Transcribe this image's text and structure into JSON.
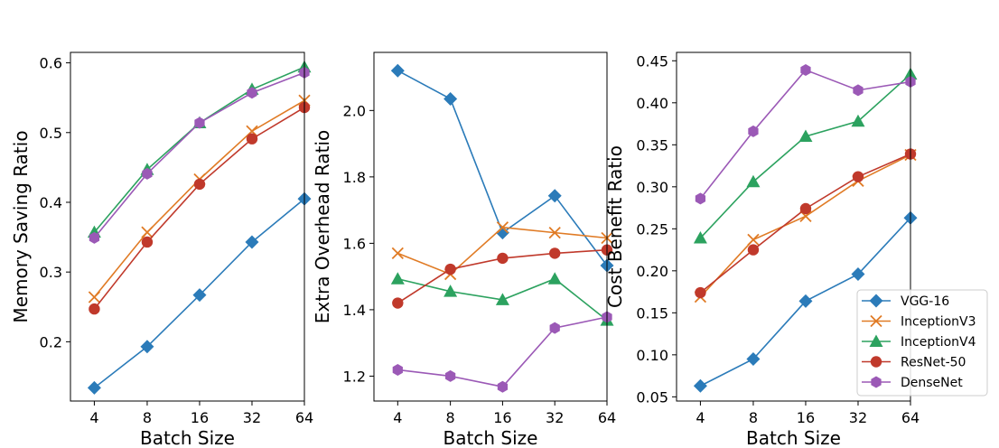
{
  "chart_data": [
    {
      "type": "line",
      "categories": [
        "4",
        "8",
        "16",
        "32",
        "64"
      ],
      "xlabel": "Batch Size",
      "ylabel": "Memory Saving Ratio",
      "ylim": [
        0.115,
        0.615
      ],
      "yticks": [
        0.2,
        0.3,
        0.4,
        0.5,
        0.6
      ],
      "ytick_labels": [
        "0.2",
        "0.3",
        "0.4",
        "0.5",
        "0.6"
      ],
      "series": [
        {
          "name": "VGG-16",
          "values": [
            0.134,
            0.193,
            0.267,
            0.343,
            0.405
          ]
        },
        {
          "name": "InceptionV3",
          "values": [
            0.264,
            0.357,
            0.433,
            0.502,
            0.546
          ]
        },
        {
          "name": "InceptionV4",
          "values": [
            0.357,
            0.447,
            0.514,
            0.562,
            0.594
          ]
        },
        {
          "name": "ResNet-50",
          "values": [
            0.247,
            0.343,
            0.426,
            0.491,
            0.536
          ]
        },
        {
          "name": "DenseNet",
          "values": [
            0.349,
            0.441,
            0.514,
            0.557,
            0.586
          ]
        }
      ]
    },
    {
      "type": "line",
      "categories": [
        "4",
        "8",
        "16",
        "32",
        "64"
      ],
      "xlabel": "Batch Size",
      "ylabel": "Extra Overhead Ratio",
      "ylim": [
        1.125,
        2.175
      ],
      "yticks": [
        1.2,
        1.4,
        1.6,
        1.8,
        2.0
      ],
      "ytick_labels": [
        "1.2",
        "1.4",
        "1.6",
        "1.8",
        "2.0"
      ],
      "series": [
        {
          "name": "VGG-16",
          "values": [
            2.12,
            2.035,
            1.632,
            1.743,
            1.533
          ]
        },
        {
          "name": "InceptionV3",
          "values": [
            1.57,
            1.507,
            1.648,
            1.632,
            1.616
          ]
        },
        {
          "name": "InceptionV4",
          "values": [
            1.493,
            1.455,
            1.43,
            1.493,
            1.368
          ]
        },
        {
          "name": "ResNet-50",
          "values": [
            1.42,
            1.522,
            1.555,
            1.57,
            1.58
          ]
        },
        {
          "name": "DenseNet",
          "values": [
            1.219,
            1.2,
            1.168,
            1.345,
            1.378
          ]
        }
      ]
    },
    {
      "type": "line",
      "categories": [
        "4",
        "8",
        "16",
        "32",
        "64"
      ],
      "xlabel": "Batch Size",
      "ylabel": "Cost Benefit Ratio",
      "ylim": [
        0.045,
        0.46
      ],
      "yticks": [
        0.05,
        0.1,
        0.15,
        0.2,
        0.25,
        0.3,
        0.35,
        0.4,
        0.45
      ],
      "ytick_labels": [
        "0.05",
        "0.10",
        "0.15",
        "0.20",
        "0.25",
        "0.30",
        "0.35",
        "0.40",
        "0.45"
      ],
      "series": [
        {
          "name": "VGG-16",
          "values": [
            0.063,
            0.095,
            0.164,
            0.196,
            0.263
          ]
        },
        {
          "name": "InceptionV3",
          "values": [
            0.169,
            0.237,
            0.265,
            0.307,
            0.338
          ]
        },
        {
          "name": "InceptionV4",
          "values": [
            0.239,
            0.306,
            0.36,
            0.378,
            0.434
          ]
        },
        {
          "name": "ResNet-50",
          "values": [
            0.174,
            0.225,
            0.274,
            0.312,
            0.339
          ]
        },
        {
          "name": "DenseNet",
          "values": [
            0.286,
            0.366,
            0.439,
            0.415,
            0.425
          ]
        }
      ],
      "legend": {
        "position": "lower-right",
        "entries": [
          "VGG-16",
          "InceptionV3",
          "InceptionV4",
          "ResNet-50",
          "DenseNet"
        ]
      }
    }
  ],
  "styles": {
    "VGG-16": {
      "color": "#2b7bb9",
      "marker": "diamond"
    },
    "InceptionV3": {
      "color": "#e07b25",
      "marker": "x"
    },
    "InceptionV4": {
      "color": "#2ca25f",
      "marker": "triangle"
    },
    "ResNet-50": {
      "color": "#c0392b",
      "marker": "circle"
    },
    "DenseNet": {
      "color": "#9b59b6",
      "marker": "hexagon"
    }
  }
}
